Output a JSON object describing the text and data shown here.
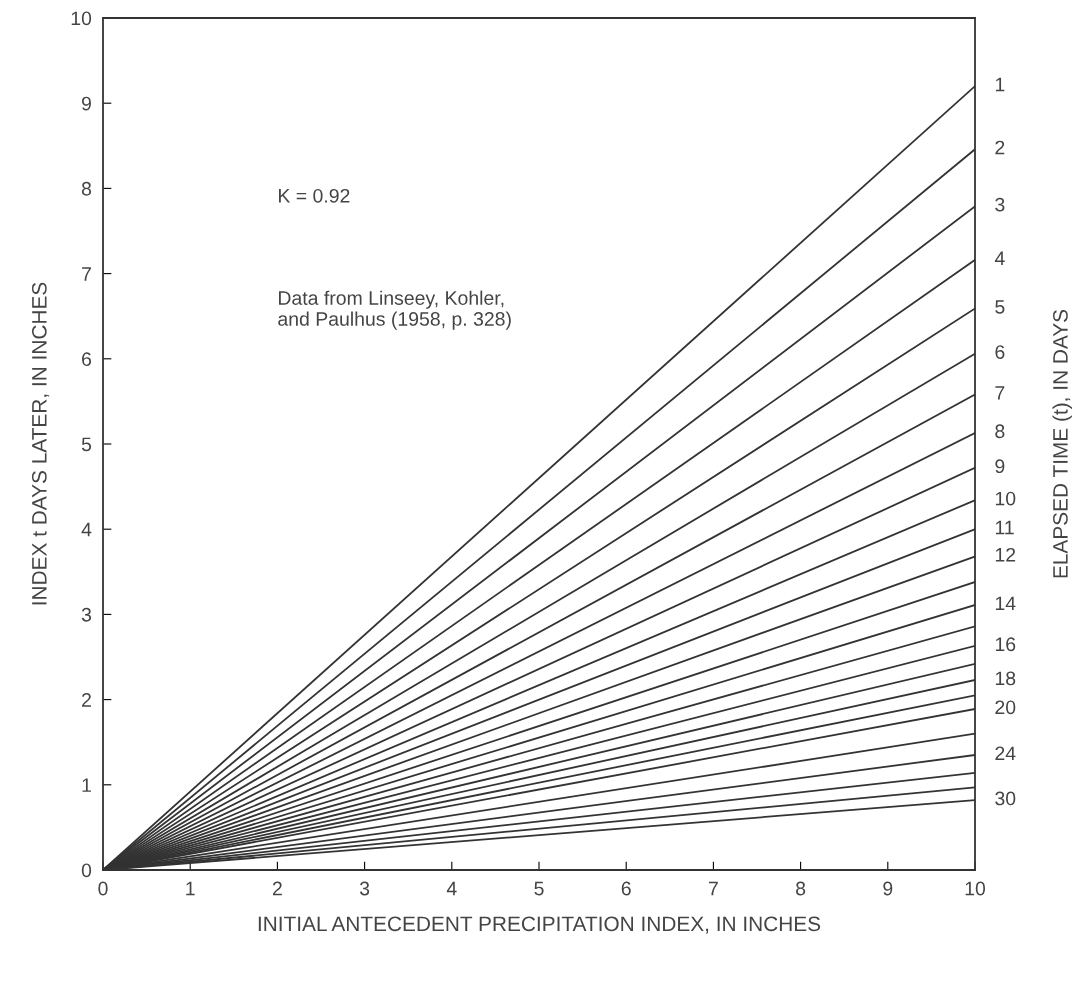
{
  "chart_data": {
    "type": "line",
    "xlabel": "INITIAL ANTECEDENT PRECIPITATION INDEX, IN INCHES",
    "ylabel": "INDEX t DAYS LATER, IN INCHES",
    "y2label": "ELAPSED TIME (t), IN DAYS",
    "annotations": [
      "K = 0.92",
      "Data from Linseey, Kohler,\nand Paulhus (1958, p. 328)"
    ],
    "x": [
      0,
      10
    ],
    "xlim": [
      0,
      10
    ],
    "xticks": [
      0,
      1,
      2,
      3,
      4,
      5,
      6,
      7,
      8,
      9,
      10
    ],
    "ylim": [
      0,
      10
    ],
    "yticks": [
      0,
      1,
      2,
      3,
      4,
      5,
      6,
      7,
      8,
      9,
      10
    ],
    "grid": false,
    "legend": false,
    "marker": "none",
    "line_style": "solid",
    "series": [
      {
        "name": "1",
        "color": "#333333",
        "values": [
          0,
          9.2
        ]
      },
      {
        "name": "2",
        "color": "#333333",
        "values": [
          0,
          8.46
        ]
      },
      {
        "name": "3",
        "color": "#333333",
        "values": [
          0,
          7.79
        ]
      },
      {
        "name": "4",
        "color": "#333333",
        "values": [
          0,
          7.16
        ]
      },
      {
        "name": "5",
        "color": "#333333",
        "values": [
          0,
          6.59
        ]
      },
      {
        "name": "6",
        "color": "#333333",
        "values": [
          0,
          6.06
        ]
      },
      {
        "name": "7",
        "color": "#333333",
        "values": [
          0,
          5.58
        ]
      },
      {
        "name": "8",
        "color": "#333333",
        "values": [
          0,
          5.13
        ]
      },
      {
        "name": "9",
        "color": "#333333",
        "values": [
          0,
          4.72
        ]
      },
      {
        "name": "10",
        "color": "#333333",
        "values": [
          0,
          4.34
        ]
      },
      {
        "name": "11",
        "color": "#333333",
        "values": [
          0,
          4.0
        ]
      },
      {
        "name": "12",
        "color": "#333333",
        "values": [
          0,
          3.68
        ]
      },
      {
        "color": "#333333",
        "values": [
          0,
          3.38
        ]
      },
      {
        "name": "14",
        "color": "#333333",
        "values": [
          0,
          3.11
        ]
      },
      {
        "color": "#333333",
        "values": [
          0,
          2.86
        ]
      },
      {
        "name": "16",
        "color": "#333333",
        "values": [
          0,
          2.63
        ]
      },
      {
        "color": "#333333",
        "values": [
          0,
          2.42
        ]
      },
      {
        "name": "18",
        "color": "#333333",
        "values": [
          0,
          2.23
        ]
      },
      {
        "color": "#333333",
        "values": [
          0,
          2.05
        ]
      },
      {
        "name": "20",
        "color": "#333333",
        "values": [
          0,
          1.89
        ]
      },
      {
        "color": "#333333",
        "values": [
          0,
          1.6
        ]
      },
      {
        "name": "24",
        "color": "#333333",
        "values": [
          0,
          1.35
        ]
      },
      {
        "color": "#333333",
        "values": [
          0,
          1.14
        ]
      },
      {
        "color": "#333333",
        "values": [
          0,
          0.97
        ]
      },
      {
        "name": "30",
        "color": "#333333",
        "values": [
          0,
          0.82
        ]
      }
    ]
  }
}
